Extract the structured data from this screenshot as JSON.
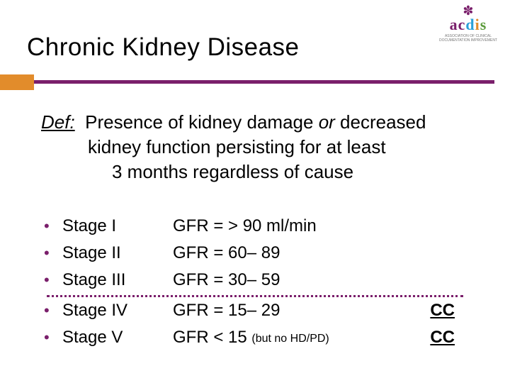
{
  "colors": {
    "purple": "#7a1f6b",
    "orange": "#e28c2b",
    "blue": "#2aa0d8",
    "green": "#5a9a3a"
  },
  "logo": {
    "letters": {
      "a": "a",
      "c": "c",
      "d": "d",
      "i": "i",
      "s": "s"
    },
    "tagline1": "ASSOCIATION OF CLINICAL",
    "tagline2": "DOCUMENTATION IMPROVEMENT"
  },
  "title": "Chronic Kidney Disease",
  "definition": {
    "label": "Def:",
    "line1a": "Presence of kidney damage ",
    "or": "or",
    "line1b": " decreased",
    "line2": "kidney function persisting for at least",
    "line3": "3 months regardless of cause"
  },
  "stages": [
    {
      "label": "Stage I",
      "gfr": "GFR = > 90 ml/min",
      "note": "",
      "cc": ""
    },
    {
      "label": "Stage II",
      "gfr": "GFR = 60– 89",
      "note": "",
      "cc": ""
    },
    {
      "label": "Stage III",
      "gfr": "GFR = 30– 59",
      "note": "",
      "cc": ""
    },
    {
      "label": "Stage IV",
      "gfr": "GFR = 15– 29",
      "note": "",
      "cc": "CC"
    },
    {
      "label": "Stage V",
      "gfr": "GFR < 15 ",
      "note": "(but no HD/PD)",
      "cc": "CC"
    }
  ],
  "bullet_char": "•",
  "divider_after_index": 2
}
